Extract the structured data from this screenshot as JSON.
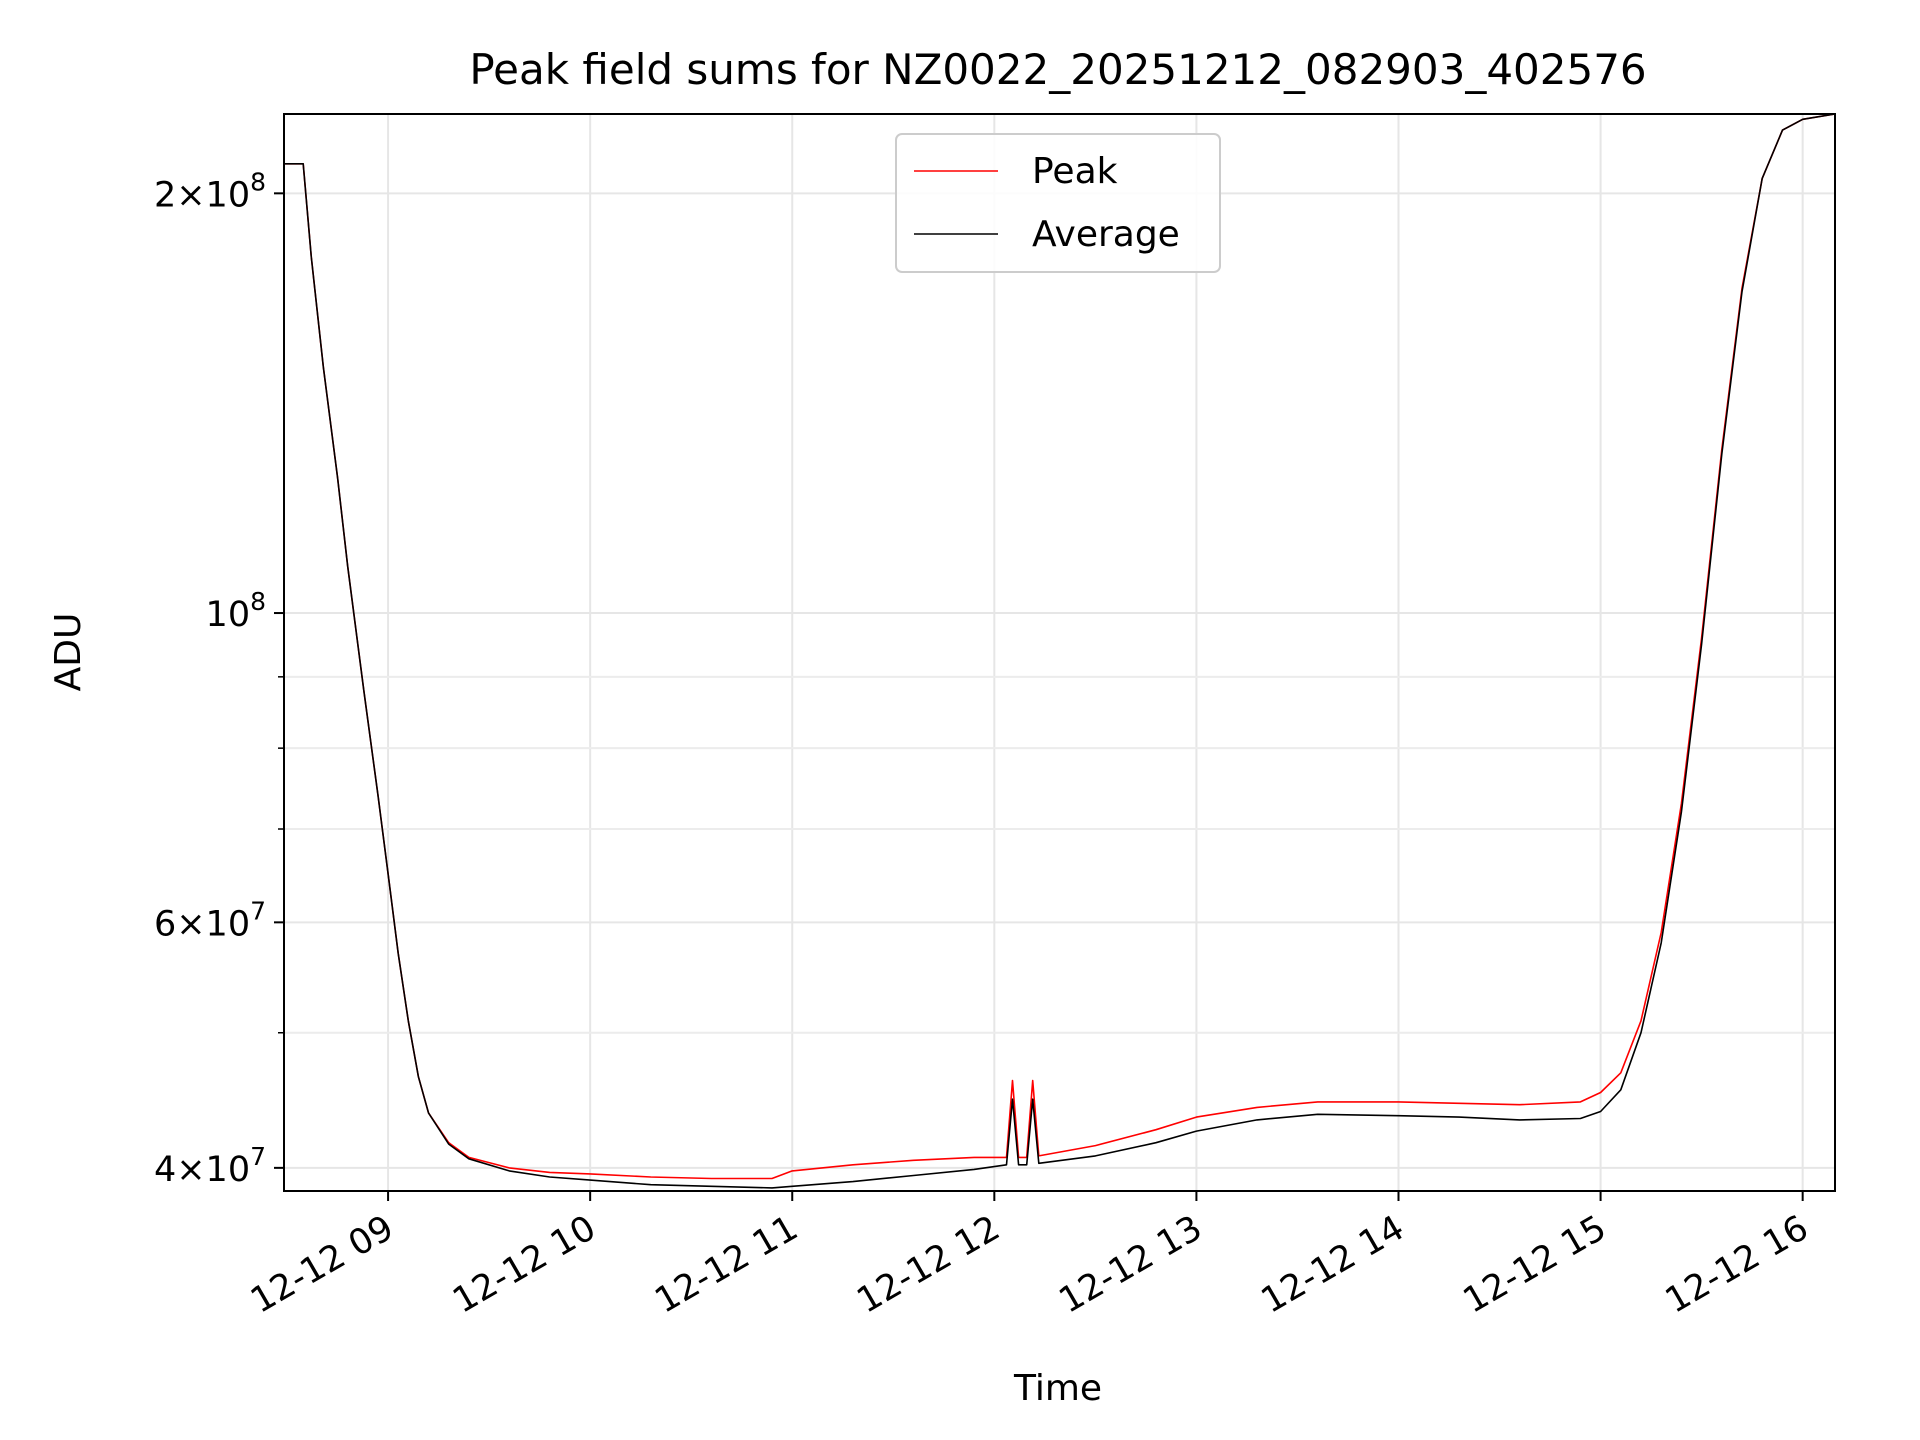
{
  "chart_data": {
    "type": "line",
    "title": "Peak field sums for NZ0022_20251212_082903_402576",
    "xlabel": "Time",
    "ylabel": "ADU",
    "yscale": "log",
    "grid": true,
    "legend_position": "upper-center",
    "xlim_hours": [
      8.485,
      16.16
    ],
    "ylim": [
      38500000,
      228000000
    ],
    "x_unit": "hour of day 2025-12-12",
    "x_ticks": [
      {
        "value": 9,
        "label": "12-12 09"
      },
      {
        "value": 10,
        "label": "12-12 10"
      },
      {
        "value": 11,
        "label": "12-12 11"
      },
      {
        "value": 12,
        "label": "12-12 12"
      },
      {
        "value": 13,
        "label": "12-12 13"
      },
      {
        "value": 14,
        "label": "12-12 14"
      },
      {
        "value": 15,
        "label": "12-12 15"
      },
      {
        "value": 16,
        "label": "12-12 16"
      }
    ],
    "y_major_ticks": [
      {
        "value": 40000000,
        "mantissa": "4",
        "exponent": "7"
      },
      {
        "value": 60000000,
        "mantissa": "6",
        "exponent": "7"
      },
      {
        "value": 100000000,
        "mantissa": "",
        "exponent": "8"
      },
      {
        "value": 200000000,
        "mantissa": "2",
        "exponent": "8"
      }
    ],
    "y_minor_ticks": [
      50000000,
      70000000,
      80000000,
      90000000
    ],
    "tick_base": "10",
    "times_sign": "×",
    "series": [
      {
        "name": "Average",
        "color": "#000000",
        "x": [
          8.485,
          8.58,
          8.62,
          8.68,
          8.75,
          8.8,
          8.88,
          8.95,
          9.0,
          9.05,
          9.1,
          9.15,
          9.2,
          9.3,
          9.4,
          9.6,
          9.8,
          10.0,
          10.3,
          10.6,
          10.9,
          11.0,
          11.3,
          11.6,
          11.9,
          12.06,
          12.09,
          12.12,
          12.16,
          12.19,
          12.22,
          12.5,
          12.8,
          13.0,
          13.3,
          13.6,
          14.0,
          14.3,
          14.6,
          14.9,
          15.0,
          15.1,
          15.2,
          15.3,
          15.4,
          15.5,
          15.6,
          15.7,
          15.8,
          15.9,
          16.0,
          16.16
        ],
        "y": [
          210000000,
          210000000,
          180000000,
          150000000,
          125000000,
          108000000,
          88000000,
          74000000,
          65000000,
          57000000,
          51000000,
          46500000,
          43800000,
          41600000,
          40600000,
          39800000,
          39400000,
          39200000,
          38900000,
          38800000,
          38700000,
          38800000,
          39100000,
          39500000,
          39900000,
          40200000,
          44800000,
          40200000,
          40200000,
          44800000,
          40300000,
          40800000,
          41700000,
          42500000,
          43300000,
          43700000,
          43600000,
          43500000,
          43300000,
          43400000,
          43900000,
          45500000,
          50000000,
          58000000,
          72000000,
          95000000,
          130000000,
          170000000,
          205000000,
          222000000,
          226000000,
          228000000
        ]
      },
      {
        "name": "Peak",
        "color": "#ff0000",
        "x": [
          8.485,
          8.58,
          8.62,
          8.68,
          8.75,
          8.8,
          8.88,
          8.95,
          9.0,
          9.05,
          9.1,
          9.15,
          9.2,
          9.3,
          9.4,
          9.6,
          9.8,
          10.0,
          10.3,
          10.6,
          10.9,
          11.0,
          11.3,
          11.6,
          11.9,
          12.06,
          12.09,
          12.12,
          12.16,
          12.19,
          12.22,
          12.5,
          12.8,
          13.0,
          13.3,
          13.6,
          14.0,
          14.3,
          14.6,
          14.9,
          15.0,
          15.1,
          15.2,
          15.3,
          15.4,
          15.5,
          15.6,
          15.7,
          15.8,
          15.9,
          16.0,
          16.16
        ],
        "y": [
          210000000,
          210000000,
          180000000,
          150000000,
          125000000,
          108000000,
          88000000,
          74000000,
          65000000,
          57000000,
          51000000,
          46500000,
          43800000,
          41700000,
          40700000,
          40000000,
          39700000,
          39600000,
          39400000,
          39300000,
          39300000,
          39800000,
          40200000,
          40500000,
          40700000,
          40700000,
          46200000,
          40700000,
          40700000,
          46200000,
          40800000,
          41500000,
          42600000,
          43500000,
          44200000,
          44600000,
          44600000,
          44500000,
          44400000,
          44600000,
          45300000,
          46800000,
          51000000,
          59000000,
          73000000,
          96000000,
          131000000,
          171000000,
          205000000,
          222000000,
          226000000,
          228000000
        ]
      }
    ]
  }
}
